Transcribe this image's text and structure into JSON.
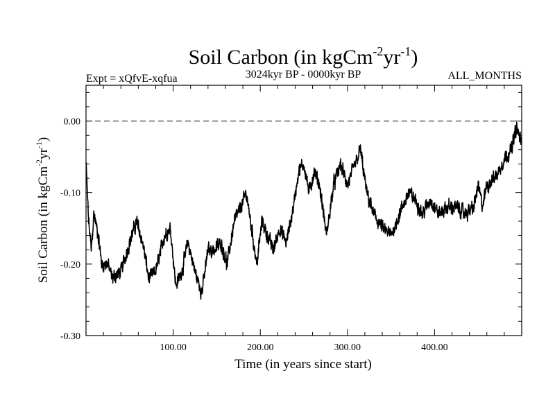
{
  "chart_data": {
    "type": "line",
    "title": "Soil Carbon (in kgCm",
    "title_sup1": "-2",
    "title_mid": "yr",
    "title_sup2": "-1",
    "title_end": ")",
    "subtitle_left": "Expt = xQfvE-xqfua",
    "subtitle_center": "3024kyr BP - 0000kyr BP",
    "subtitle_right": "ALL_MONTHS",
    "xlabel": "Time (in years since start)",
    "ylabel": "Soil Carbon (in kgCm",
    "ylabel_sup1": "-2",
    "ylabel_mid": "yr",
    "ylabel_sup2": "-1",
    "ylabel_end": ")",
    "xlim": [
      0,
      500
    ],
    "ylim": [
      -0.3,
      0.05
    ],
    "xticks": [
      100,
      200,
      300,
      400
    ],
    "xtick_labels": [
      "100.00",
      "200.00",
      "300.00",
      "400.00"
    ],
    "yticks": [
      0.0,
      -0.1,
      -0.2,
      -0.3
    ],
    "ytick_labels": [
      "0.00",
      "-0.10",
      "-0.20",
      "-0.30"
    ],
    "reference_line": 0.0,
    "series": [
      {
        "name": "Soil Carbon",
        "keypoints": [
          [
            0,
            -0.06
          ],
          [
            3,
            -0.14
          ],
          [
            6,
            -0.18
          ],
          [
            9,
            -0.13
          ],
          [
            14,
            -0.16
          ],
          [
            18,
            -0.2
          ],
          [
            25,
            -0.2
          ],
          [
            30,
            -0.22
          ],
          [
            40,
            -0.21
          ],
          [
            50,
            -0.17
          ],
          [
            58,
            -0.14
          ],
          [
            65,
            -0.17
          ],
          [
            72,
            -0.22
          ],
          [
            80,
            -0.21
          ],
          [
            90,
            -0.16
          ],
          [
            97,
            -0.15
          ],
          [
            103,
            -0.23
          ],
          [
            110,
            -0.21
          ],
          [
            117,
            -0.17
          ],
          [
            125,
            -0.21
          ],
          [
            133,
            -0.24
          ],
          [
            140,
            -0.18
          ],
          [
            148,
            -0.18
          ],
          [
            155,
            -0.17
          ],
          [
            162,
            -0.2
          ],
          [
            170,
            -0.14
          ],
          [
            178,
            -0.12
          ],
          [
            184,
            -0.1
          ],
          [
            190,
            -0.15
          ],
          [
            196,
            -0.2
          ],
          [
            202,
            -0.14
          ],
          [
            208,
            -0.16
          ],
          [
            215,
            -0.18
          ],
          [
            222,
            -0.15
          ],
          [
            230,
            -0.17
          ],
          [
            238,
            -0.12
          ],
          [
            244,
            -0.07
          ],
          [
            250,
            -0.06
          ],
          [
            256,
            -0.1
          ],
          [
            262,
            -0.07
          ],
          [
            268,
            -0.09
          ],
          [
            276,
            -0.16
          ],
          [
            284,
            -0.09
          ],
          [
            292,
            -0.06
          ],
          [
            300,
            -0.09
          ],
          [
            306,
            -0.07
          ],
          [
            315,
            -0.04
          ],
          [
            322,
            -0.1
          ],
          [
            330,
            -0.13
          ],
          [
            340,
            -0.15
          ],
          [
            350,
            -0.16
          ],
          [
            360,
            -0.13
          ],
          [
            370,
            -0.1
          ],
          [
            378,
            -0.11
          ],
          [
            386,
            -0.13
          ],
          [
            395,
            -0.11
          ],
          [
            405,
            -0.13
          ],
          [
            415,
            -0.12
          ],
          [
            425,
            -0.12
          ],
          [
            435,
            -0.13
          ],
          [
            445,
            -0.12
          ],
          [
            450,
            -0.09
          ],
          [
            455,
            -0.12
          ],
          [
            460,
            -0.09
          ],
          [
            468,
            -0.08
          ],
          [
            474,
            -0.07
          ],
          [
            481,
            -0.05
          ],
          [
            488,
            -0.04
          ],
          [
            494,
            -0.01
          ],
          [
            500,
            -0.03
          ]
        ],
        "noise_amplitude": 0.012
      }
    ]
  }
}
